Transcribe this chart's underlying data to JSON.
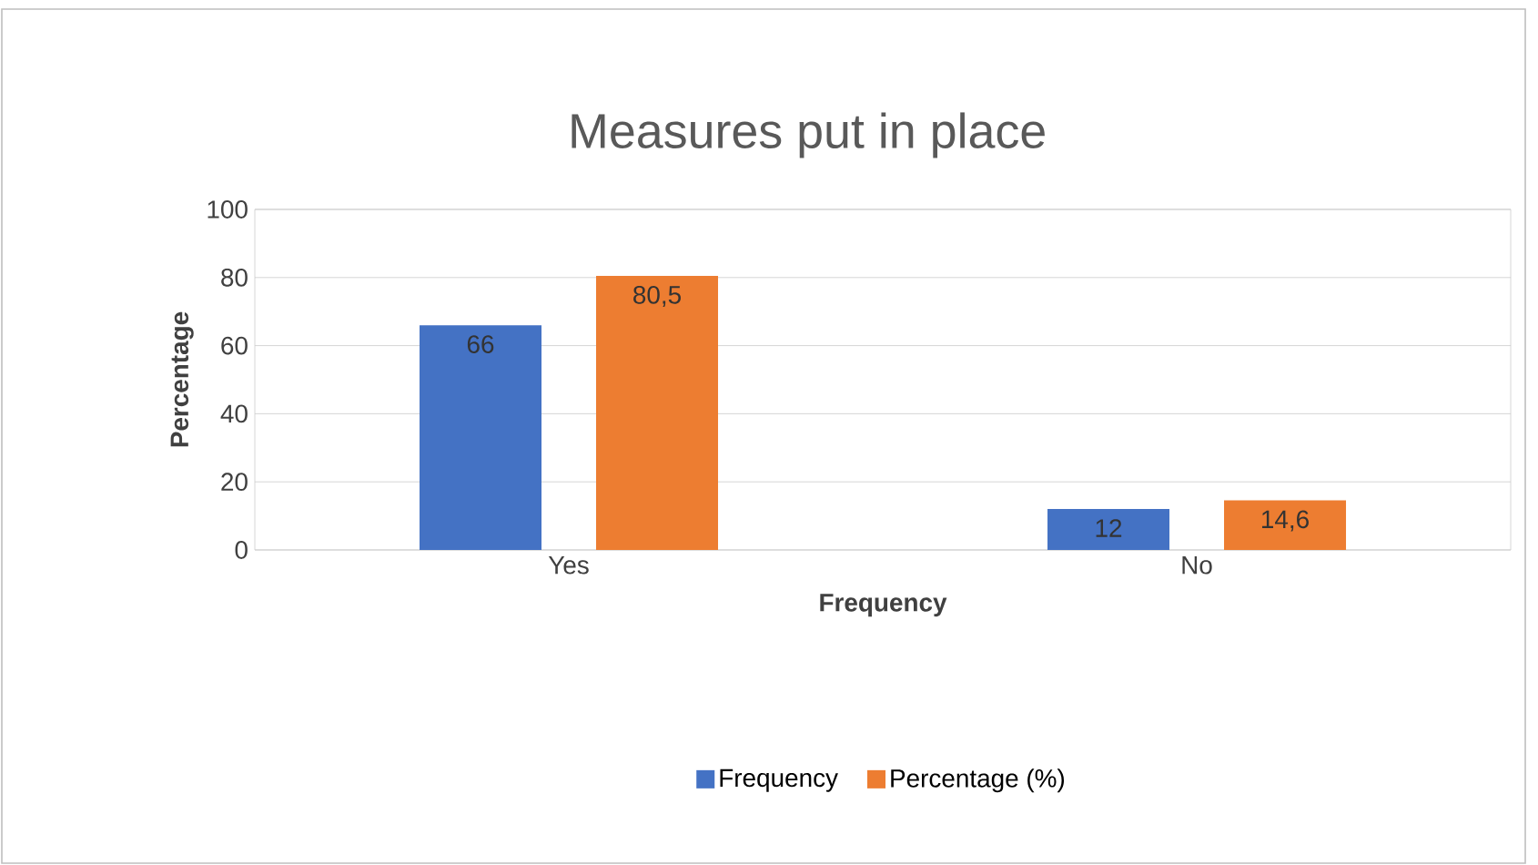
{
  "chart_data": {
    "type": "bar",
    "title": "Measures put in place",
    "xlabel": "Frequency",
    "ylabel": "Percentage",
    "categories": [
      "Yes",
      "No"
    ],
    "series": [
      {
        "name": "Frequency",
        "color": "#4472c4",
        "values": [
          66,
          12
        ],
        "value_labels": [
          "66",
          "12"
        ]
      },
      {
        "name": "Percentage (%)",
        "color": "#ed7d31",
        "values": [
          80.5,
          14.6
        ],
        "value_labels": [
          "80,5",
          "14,6"
        ]
      }
    ],
    "ylim": [
      0,
      100
    ],
    "yticks": [
      0,
      20,
      40,
      60,
      80,
      100
    ],
    "grid": "y",
    "legend": "bottom"
  }
}
